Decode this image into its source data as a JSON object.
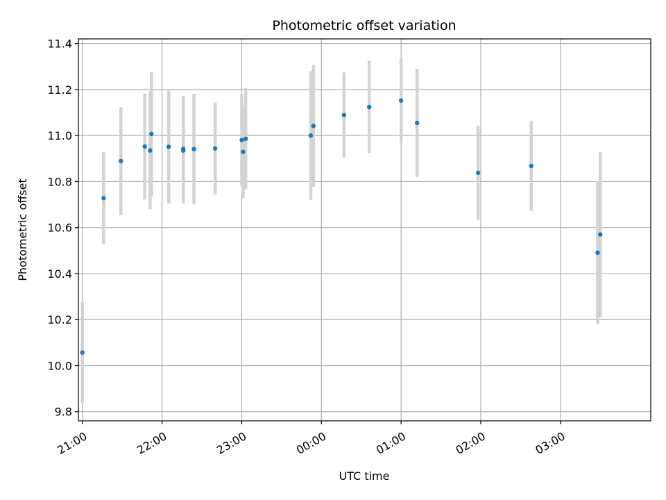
{
  "chart_data": {
    "type": "scatter",
    "title": "Photometric offset variation",
    "xlabel": "UTC time",
    "ylabel": "Photometric offset",
    "ylim": [
      9.76,
      11.42
    ],
    "xlim": [
      "20:57",
      "04:08"
    ],
    "yticks": [
      "9.8",
      "10.0",
      "10.2",
      "10.4",
      "10.6",
      "10.8",
      "11.0",
      "11.2",
      "11.4"
    ],
    "xticks": [
      "21:00",
      "22:00",
      "23:00",
      "00:00",
      "01:00",
      "02:00",
      "03:00"
    ],
    "grid": true,
    "series": [
      {
        "points": [
          {
            "x": "21:00",
            "y": 10.057,
            "err": 0.22
          },
          {
            "x": "21:16",
            "y": 10.728,
            "err": 0.2
          },
          {
            "x": "21:29",
            "y": 10.889,
            "err": 0.235
          },
          {
            "x": "21:47",
            "y": 10.952,
            "err": 0.23
          },
          {
            "x": "21:51",
            "y": 10.935,
            "err": 0.255
          },
          {
            "x": "21:52",
            "y": 11.007,
            "err": 0.27
          },
          {
            "x": "22:05",
            "y": 10.951,
            "err": 0.245
          },
          {
            "x": "22:16",
            "y": 10.942,
            "err": 0.23
          },
          {
            "x": "22:16",
            "y": 10.935,
            "err": 0.23
          },
          {
            "x": "22:24",
            "y": 10.941,
            "err": 0.24
          },
          {
            "x": "22:40",
            "y": 10.944,
            "err": 0.2
          },
          {
            "x": "23:00",
            "y": 10.98,
            "err": 0.2
          },
          {
            "x": "23:01",
            "y": 10.929,
            "err": 0.2
          },
          {
            "x": "23:03",
            "y": 10.986,
            "err": 0.22
          },
          {
            "x": "23:52",
            "y": 11.0,
            "err": 0.28
          },
          {
            "x": "23:54",
            "y": 11.042,
            "err": 0.265
          },
          {
            "x": "00:17",
            "y": 11.089,
            "err": 0.185
          },
          {
            "x": "00:36",
            "y": 11.124,
            "err": 0.2
          },
          {
            "x": "01:00",
            "y": 11.152,
            "err": 0.185
          },
          {
            "x": "01:12",
            "y": 11.055,
            "err": 0.235
          },
          {
            "x": "01:58",
            "y": 10.838,
            "err": 0.205
          },
          {
            "x": "02:38",
            "y": 10.868,
            "err": 0.195
          },
          {
            "x": "03:28",
            "y": 10.491,
            "err": 0.31
          },
          {
            "x": "03:30",
            "y": 10.57,
            "err": 0.36
          }
        ]
      }
    ],
    "colors": {
      "marker": "#1f77b4",
      "errorbar": "#d3d3d3",
      "grid": "#b0b0b0"
    }
  }
}
